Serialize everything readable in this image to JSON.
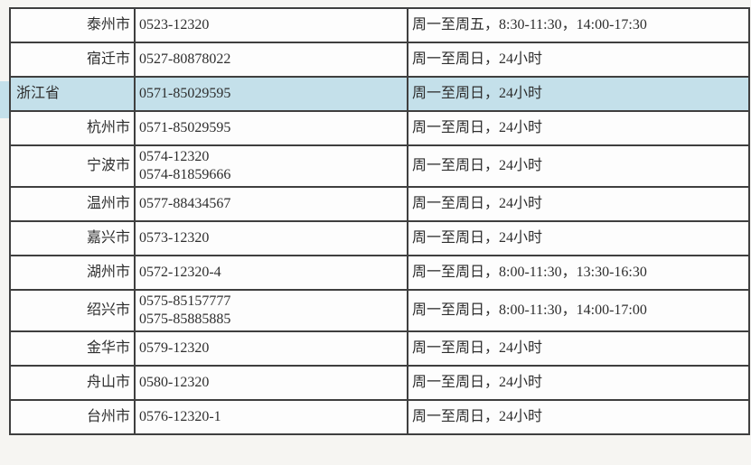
{
  "table": {
    "highlight_color": "#c4e0ea",
    "border_color": "#3f3f3f",
    "rows": [
      {
        "region": "泰州市",
        "level": "city",
        "highlighted": false,
        "phone": "0523-12320",
        "hours": "周一至周五，8:30-11:30，14:00-17:30"
      },
      {
        "region": "宿迁市",
        "level": "city",
        "highlighted": false,
        "phone": "0527-80878022",
        "hours": "周一至周日，24小时"
      },
      {
        "region": "浙江省",
        "level": "province",
        "highlighted": true,
        "phone": "0571-85029595",
        "hours": "周一至周日，24小时"
      },
      {
        "region": "杭州市",
        "level": "city",
        "highlighted": false,
        "phone": "0571-85029595",
        "hours": "周一至周日，24小时"
      },
      {
        "region": "宁波市",
        "level": "city",
        "highlighted": false,
        "phone": "0574-12320\n0574-81859666",
        "hours": "周一至周日，24小时"
      },
      {
        "region": "温州市",
        "level": "city",
        "highlighted": false,
        "phone": "0577-88434567",
        "hours": "周一至周日，24小时"
      },
      {
        "region": "嘉兴市",
        "level": "city",
        "highlighted": false,
        "phone": "0573-12320",
        "hours": "周一至周日，24小时"
      },
      {
        "region": "湖州市",
        "level": "city",
        "highlighted": false,
        "phone": "0572-12320-4",
        "hours": "周一至周日，8:00-11:30，13:30-16:30"
      },
      {
        "region": "绍兴市",
        "level": "city",
        "highlighted": false,
        "phone": "0575-85157777\n0575-85885885",
        "hours": "周一至周日，8:00-11:30，14:00-17:00"
      },
      {
        "region": "金华市",
        "level": "city",
        "highlighted": false,
        "phone": "0579-12320",
        "hours": "周一至周日，24小时"
      },
      {
        "region": "舟山市",
        "level": "city",
        "highlighted": false,
        "phone": "0580-12320",
        "hours": "周一至周日，24小时"
      },
      {
        "region": "台州市",
        "level": "city",
        "highlighted": false,
        "phone": "0576-12320-1",
        "hours": "周一至周日，24小时"
      }
    ]
  }
}
